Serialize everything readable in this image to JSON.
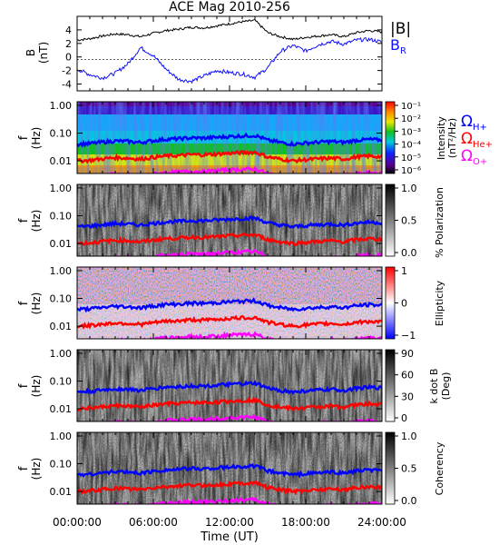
{
  "title": "ACE Mag 2010-256",
  "colors": {
    "total_field": "#000000",
    "radial_field": "#1010ff",
    "h_plus": "#0000ff",
    "he_plus": "#ff0000",
    "o_plus": "#ff00ff"
  },
  "labels": {
    "b_field": "|B|",
    "b_radial": "B",
    "b_radial_sub": "R",
    "omega": "Ω",
    "h_plus": "H+",
    "he_plus": "He+",
    "o_plus": "O+",
    "xlabel": "Time (UT)"
  },
  "chart_data": [
    {
      "type": "line",
      "title": "ACE Mag 2010-256",
      "ylabel": "B",
      "yunit": "(nT)",
      "ylim": [
        -5,
        6
      ],
      "yticks": [
        -4,
        -2,
        0,
        2,
        4
      ],
      "series": [
        {
          "name": "|B|",
          "x": [
            0,
            1,
            2,
            3,
            4,
            5,
            6,
            7,
            8,
            9,
            10,
            11,
            12,
            13,
            14,
            15,
            16,
            17,
            18,
            19,
            20,
            21,
            22,
            23,
            24
          ],
          "values": [
            2.5,
            2.7,
            3.1,
            3.4,
            3.3,
            3.0,
            3.5,
            3.9,
            4.1,
            4.4,
            4.3,
            4.6,
            4.9,
            5.2,
            5.4,
            3.6,
            3.0,
            2.6,
            2.9,
            3.1,
            3.3,
            3.0,
            3.6,
            3.9,
            3.7
          ]
        },
        {
          "name": "B_R",
          "x": [
            0,
            1,
            2,
            3,
            4,
            5,
            6,
            7,
            8,
            9,
            10,
            11,
            12,
            13,
            14,
            15,
            16,
            17,
            18,
            19,
            20,
            21,
            22,
            23,
            24
          ],
          "values": [
            -1.8,
            -2.6,
            -3.1,
            -2.4,
            -1.0,
            1.4,
            0.2,
            -1.8,
            -3.3,
            -3.6,
            -2.8,
            -2.0,
            -2.3,
            -2.5,
            -3.0,
            -1.6,
            0.8,
            1.7,
            0.9,
            1.8,
            2.3,
            1.9,
            2.5,
            2.6,
            2.2
          ]
        }
      ]
    },
    {
      "type": "heatmap",
      "ylabel": "f",
      "yunit": "(Hz)",
      "yscale": "log",
      "yticks": [
        "1.00",
        "0.10",
        "0.01"
      ],
      "colorbar_label": "Intensity",
      "colorbar_unit": "(nT²/Hz)",
      "colorbar_ticks": [
        "10⁻¹",
        "10⁻²",
        "10⁻³",
        "10⁻⁴",
        "10⁻⁵",
        "10⁻⁶"
      ]
    },
    {
      "type": "heatmap",
      "ylabel": "f",
      "yunit": "(Hz)",
      "yscale": "log",
      "yticks": [
        "1.00",
        "0.10",
        "0.01"
      ],
      "colorbar_label": "% Polarization",
      "colorbar_ticks": [
        "1.0",
        "0.5",
        "0.0"
      ]
    },
    {
      "type": "heatmap",
      "ylabel": "f",
      "yunit": "(Hz)",
      "yscale": "log",
      "yticks": [
        "1.00",
        "0.10",
        "0.01"
      ],
      "colorbar_label": "Ellipticity",
      "colorbar_ticks": [
        "1",
        "0",
        "−1"
      ]
    },
    {
      "type": "heatmap",
      "ylabel": "f",
      "yunit": "(Hz)",
      "yscale": "log",
      "yticks": [
        "1.00",
        "0.10",
        "0.01"
      ],
      "colorbar_label": "k dot B",
      "colorbar_unit": "(Deg)",
      "colorbar_ticks": [
        "90",
        "60",
        "30",
        "0"
      ]
    },
    {
      "type": "heatmap",
      "ylabel": "f",
      "yunit": "(Hz)",
      "yscale": "log",
      "yticks": [
        "1.00",
        "0.10",
        "0.01"
      ],
      "colorbar_label": "Coherency",
      "colorbar_ticks": [
        "1.0",
        "0.5",
        "0.0"
      ]
    }
  ],
  "gyrofrequency_curves": {
    "x": [
      0,
      1,
      2,
      3,
      4,
      5,
      6,
      7,
      8,
      9,
      10,
      11,
      12,
      13,
      14,
      15,
      16,
      17,
      18,
      19,
      20,
      21,
      22,
      23,
      24
    ],
    "series": [
      {
        "name": "H+",
        "values": [
          0.04,
          0.042,
          0.047,
          0.052,
          0.05,
          0.046,
          0.053,
          0.06,
          0.062,
          0.067,
          0.066,
          0.07,
          0.075,
          0.079,
          0.082,
          0.055,
          0.046,
          0.04,
          0.044,
          0.047,
          0.05,
          0.046,
          0.055,
          0.059,
          0.056
        ]
      },
      {
        "name": "He+",
        "values": [
          0.01,
          0.0105,
          0.0118,
          0.013,
          0.0125,
          0.0115,
          0.0133,
          0.015,
          0.0155,
          0.0168,
          0.0165,
          0.0175,
          0.0188,
          0.0198,
          0.0205,
          0.0138,
          0.0115,
          0.01,
          0.011,
          0.0118,
          0.0125,
          0.0115,
          0.0138,
          0.0148,
          0.014
        ]
      },
      {
        "name": "O+",
        "values": [
          0.0025,
          0.0026,
          0.0029,
          0.0033,
          0.0031,
          0.0029,
          0.0033,
          0.0038,
          0.0039,
          0.0042,
          0.0041,
          0.0044,
          0.0047,
          0.0049,
          0.0051,
          0.0034,
          0.0029,
          0.0025,
          0.0028,
          0.0029,
          0.0031,
          0.0029,
          0.0034,
          0.0037,
          0.0035
        ]
      }
    ]
  },
  "x_axis": {
    "ticks": [
      "00:00:00",
      "06:00:00",
      "12:00:00",
      "18:00:00",
      "24:00:00"
    ],
    "label": "Time (UT)",
    "range_hours": [
      0,
      24
    ]
  }
}
